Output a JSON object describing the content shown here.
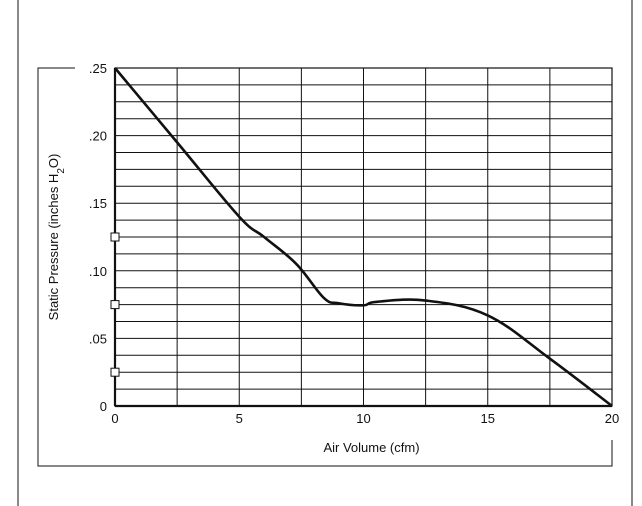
{
  "chart_data": {
    "type": "line",
    "title": "",
    "xlabel": "Air Volume (cfm)",
    "ylabel": {
      "pre": "Static Pressure (inches H",
      "sub": "2",
      "post": "O)"
    },
    "xlim": [
      0,
      20
    ],
    "ylim": [
      0,
      0.25
    ],
    "grid": true,
    "x_tick_labels": [
      {
        "value": 0,
        "label": "0"
      },
      {
        "value": 5,
        "label": "5"
      },
      {
        "value": 10,
        "label": "10"
      },
      {
        "value": 15,
        "label": "15"
      },
      {
        "value": 20,
        "label": "20"
      }
    ],
    "y_tick_labels": [
      {
        "value": 0,
        "label": "0"
      },
      {
        "value": 0.05,
        "label": ".05"
      },
      {
        "value": 0.1,
        "label": ".10"
      },
      {
        "value": 0.15,
        "label": ".15"
      },
      {
        "value": 0.2,
        "label": ".20"
      },
      {
        "value": 0.25,
        "label": ".25"
      }
    ],
    "y_minor_markers": [
      0.025,
      0.075,
      0.125
    ],
    "series": [
      {
        "x": [
          0,
          2.5,
          5,
          6,
          7.3,
          8.4,
          9,
          10,
          10.5,
          12.5,
          15,
          17.5,
          20
        ],
        "y": [
          0.25,
          0.195,
          0.14,
          0.125,
          0.105,
          0.08,
          0.076,
          0.0745,
          0.077,
          0.078,
          0.067,
          0.035,
          0.0
        ]
      }
    ]
  },
  "colors": {
    "line": "#111111",
    "grid": "#111111",
    "frame": "#111111"
  }
}
